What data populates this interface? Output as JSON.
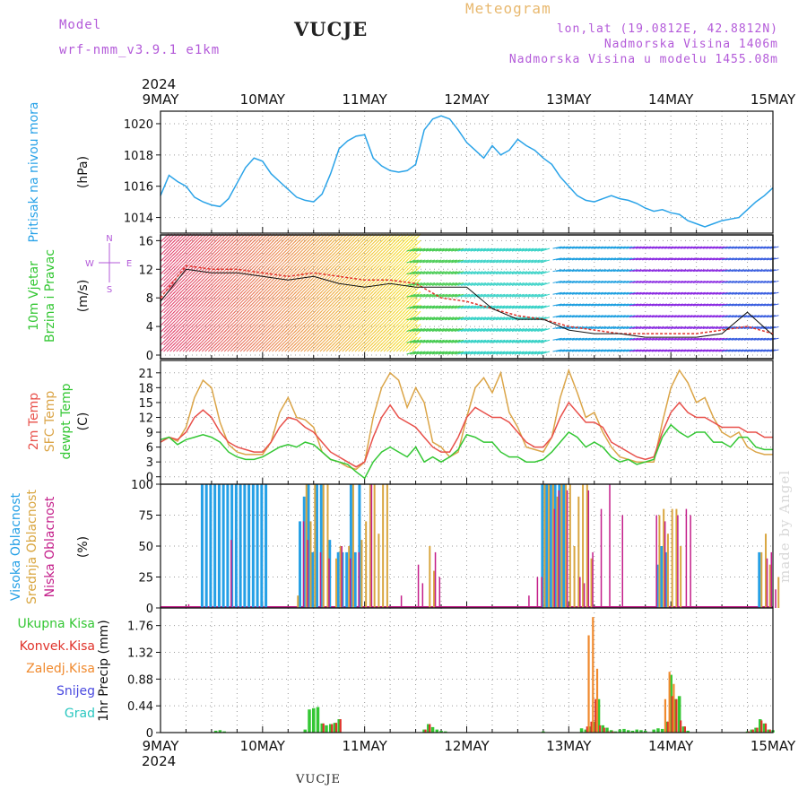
{
  "header": {
    "model_label": "Model",
    "model_name": "wrf-nmm_v3.9.1 e1km",
    "station": "VUCJE",
    "meteogram_label": "Meteogram",
    "coords": "lon,lat (19.0812E, 42.8812N)",
    "altitude": "Nadmorska Visina 1406m",
    "model_altitude": "Nadmorska Visina u modelu 1455.08m"
  },
  "footer": {
    "station": "VUCJE",
    "credit": "made by Angel"
  },
  "time_axis": {
    "year": "2024",
    "labels": [
      "9MAY",
      "10MAY",
      "11MAY",
      "12MAY",
      "13MAY",
      "14MAY",
      "15MAY"
    ]
  },
  "colors": {
    "pressure": "#2aa3e8",
    "wind_speed": "#111111",
    "wind_gust": "#e0322a",
    "temp2m": "#e8504a",
    "sfc_temp": "#dba548",
    "dewpt": "#34c734",
    "cloud_high": "#25a0e6",
    "cloud_mid": "#d9a640",
    "cloud_low": "#c41e8a",
    "precip_total": "#34c734",
    "precip_conv": "#e0322a",
    "precip_frozen": "#f08a2e",
    "snow": "#4a4ae0",
    "grad": "#2ac7c0"
  },
  "panels": {
    "pressure": {
      "label1": "Pritisak na nivou mora",
      "unit": "(hPa)"
    },
    "wind": {
      "label1": "10m Vjetar",
      "label2": "Brzina i Pravac",
      "unit": "(m/s)",
      "compass": [
        "N",
        "S",
        "E",
        "W"
      ]
    },
    "temp": {
      "label1": "2m Temp",
      "label2": "SFC Temp",
      "label3": "dewpt Temp",
      "unit": "(C)"
    },
    "cloud": {
      "label1": "Visoka Oblacnost",
      "label2": "Srednja Oblacnost",
      "label3": "Niska Oblacnost",
      "unit": "(%)"
    },
    "precip": {
      "label1": "Ukupna Kisa",
      "label2": "Konvek.Kisa",
      "label3": "Zaledj.Kisa",
      "label4": "Snijeg",
      "label5": "Grad",
      "unit": "1hr Precip (mm)"
    }
  },
  "chart_data": [
    {
      "type": "line",
      "panel": "pressure",
      "ylabel": "(hPa)",
      "ylim": [
        1013,
        1020.8
      ],
      "yticks": [
        1014,
        1016,
        1018,
        1020
      ],
      "grid": true,
      "x": [
        0,
        2,
        4,
        6,
        8,
        10,
        12,
        14,
        16,
        18,
        20,
        22,
        24,
        26,
        28,
        30,
        32,
        34,
        36,
        38,
        40,
        42,
        44,
        46,
        48,
        50,
        52,
        54,
        56,
        58,
        60,
        62,
        64,
        66,
        68,
        70,
        72,
        74,
        76,
        78,
        80,
        82,
        84,
        86,
        88,
        90,
        92,
        94,
        96,
        98,
        100,
        102,
        104,
        106,
        108,
        110,
        112,
        114,
        116,
        118,
        120,
        122,
        124,
        126,
        128,
        130,
        132,
        134,
        136,
        138,
        140,
        142,
        144
      ],
      "series": [
        {
          "values": [
            1015.4,
            1016.7,
            1016.3,
            1016.0,
            1015.3,
            1015.0,
            1014.8,
            1014.7,
            1015.2,
            1016.2,
            1017.2,
            1017.8,
            1017.6,
            1016.8,
            1016.3,
            1015.8,
            1015.3,
            1015.1,
            1015.0,
            1015.5,
            1016.8,
            1018.4,
            1018.9,
            1019.2,
            1019.3,
            1017.8,
            1017.3,
            1017.0,
            1016.9,
            1017.0,
            1017.4,
            1019.6,
            1020.3,
            1020.5,
            1020.3,
            1019.6,
            1018.8,
            1018.3,
            1017.8,
            1018.6,
            1018.0,
            1018.3,
            1019.0,
            1018.6,
            1018.3,
            1017.8,
            1017.4,
            1016.6,
            1016.0,
            1015.4,
            1015.1,
            1015.0,
            1015.2,
            1015.4,
            1015.2,
            1015.1,
            1014.9,
            1014.6,
            1014.4,
            1014.5,
            1014.3,
            1014.2,
            1013.8,
            1013.6,
            1013.4,
            1013.6,
            1013.8,
            1013.9,
            1014.0,
            1014.5,
            1015.0,
            1015.4,
            1015.9
          ]
        }
      ]
    },
    {
      "type": "line",
      "panel": "wind",
      "ylabel": "(m/s)",
      "ylim": [
        -0.5,
        16.8
      ],
      "yticks": [
        0,
        4,
        8,
        12,
        16
      ],
      "grid": true,
      "x": [
        0,
        6,
        12,
        18,
        24,
        30,
        36,
        42,
        48,
        54,
        60,
        66,
        72,
        78,
        84,
        90,
        96,
        102,
        108,
        114,
        120,
        126,
        132,
        138,
        144
      ],
      "series": [
        {
          "name": "speed",
          "values": [
            7.5,
            12.0,
            11.5,
            11.5,
            11.0,
            10.5,
            11.0,
            10.0,
            9.5,
            10.0,
            9.5,
            9.5,
            9.5,
            6.5,
            5.0,
            5.0,
            3.5,
            3.0,
            3.0,
            2.5,
            2.5,
            2.5,
            3.0,
            6.0,
            2.8
          ]
        },
        {
          "name": "gust",
          "values": [
            8.0,
            12.5,
            12.0,
            12.0,
            11.5,
            11.0,
            11.5,
            11.0,
            10.5,
            10.5,
            10.0,
            8.0,
            7.5,
            6.5,
            5.5,
            5.0,
            4.0,
            3.5,
            3.0,
            3.0,
            3.0,
            3.0,
            3.5,
            4.0,
            3.0
          ]
        }
      ]
    },
    {
      "type": "line",
      "panel": "temp",
      "ylabel": "(C)",
      "ylim": [
        -1.5,
        23.5
      ],
      "yticks": [
        0,
        3,
        6,
        9,
        12,
        15,
        18,
        21
      ],
      "grid": true,
      "x": [
        0,
        2,
        4,
        6,
        8,
        10,
        12,
        14,
        16,
        18,
        20,
        22,
        24,
        26,
        28,
        30,
        32,
        34,
        36,
        38,
        40,
        42,
        44,
        46,
        48,
        50,
        52,
        54,
        56,
        58,
        60,
        62,
        64,
        66,
        68,
        70,
        72,
        74,
        76,
        78,
        80,
        82,
        84,
        86,
        88,
        90,
        92,
        94,
        96,
        98,
        100,
        102,
        104,
        106,
        108,
        110,
        112,
        114,
        116,
        118,
        120,
        122,
        124,
        126,
        128,
        130,
        132,
        134,
        136,
        138,
        140,
        142,
        144
      ],
      "series": [
        {
          "name": "2m Temp",
          "values": [
            7,
            8,
            7.5,
            9,
            12,
            13.5,
            12,
            9,
            7,
            6,
            5.5,
            5,
            5,
            7,
            10,
            12,
            11.5,
            10,
            9,
            7,
            5,
            4,
            3,
            2,
            3,
            8,
            12,
            14.5,
            12,
            11,
            10,
            8,
            6,
            5,
            5,
            8,
            12,
            14,
            13,
            12,
            12,
            11,
            9,
            7,
            6,
            6,
            8,
            12,
            15,
            13,
            11,
            11,
            10,
            7,
            6,
            5,
            4,
            3.5,
            4,
            9,
            13,
            15,
            13,
            12,
            12,
            11,
            10,
            10,
            10,
            9,
            9,
            8,
            8
          ]
        },
        {
          "name": "SFC Temp",
          "values": [
            7,
            8,
            7.2,
            10,
            16,
            19.5,
            18,
            11,
            6.5,
            5,
            4.5,
            4.5,
            4.5,
            7,
            13,
            16,
            12,
            11.5,
            10,
            5,
            3.5,
            3,
            2,
            1.5,
            3,
            12,
            18,
            21,
            19.5,
            14,
            18,
            15,
            7,
            6,
            4,
            5,
            12,
            18,
            20,
            17,
            21,
            13,
            10,
            6,
            5.5,
            5,
            8,
            16,
            21.5,
            17,
            12,
            13,
            9,
            6,
            4,
            3.5,
            3,
            3,
            3,
            11,
            18,
            21.5,
            19,
            15,
            16,
            12,
            9,
            8,
            9,
            6,
            5,
            4.5,
            4.5
          ]
        },
        {
          "name": "dewpt Temp",
          "values": [
            7.5,
            8,
            6.5,
            7.5,
            8,
            8.5,
            8,
            7,
            5,
            4,
            3.5,
            3.5,
            4,
            5,
            6,
            6.5,
            6,
            7,
            6.5,
            5,
            3.5,
            3,
            2.5,
            1,
            -0.3,
            3,
            5,
            6,
            5,
            4,
            6,
            3,
            4,
            3,
            4,
            5.5,
            8.5,
            8,
            7,
            7,
            5,
            4,
            4,
            3,
            3,
            3.5,
            5,
            7,
            9,
            8,
            6,
            7,
            6,
            4,
            3,
            3.5,
            2.5,
            3,
            3.5,
            8,
            10.5,
            9,
            8,
            9,
            9,
            7,
            7,
            6,
            8,
            8,
            6,
            5.5,
            5.5
          ]
        }
      ]
    },
    {
      "type": "bar",
      "panel": "cloud",
      "ylabel": "(%)",
      "ylim": [
        0,
        100
      ],
      "yticks": [
        0,
        25,
        50,
        75,
        100
      ],
      "grid": true,
      "series": [
        {
          "name": "Visoka Oblacnost",
          "x": [
            10,
            11,
            12,
            13,
            14,
            15,
            16,
            17,
            18,
            19,
            20,
            21,
            22,
            23,
            24,
            25,
            33,
            34,
            35,
            36,
            37,
            38,
            40,
            42,
            43,
            44,
            45,
            46,
            47,
            90,
            91,
            92,
            93,
            94,
            95,
            117,
            118,
            119,
            141
          ],
          "values": [
            100,
            100,
            100,
            100,
            100,
            100,
            100,
            100,
            100,
            100,
            100,
            100,
            100,
            100,
            100,
            100,
            70,
            90,
            100,
            45,
            100,
            100,
            55,
            45,
            45,
            45,
            100,
            45,
            100,
            100,
            100,
            100,
            100,
            100,
            100,
            35,
            50,
            45,
            45
          ]
        },
        {
          "name": "Srednja Oblacnost",
          "x": [
            32,
            34,
            35,
            36,
            38,
            39,
            41,
            42,
            44,
            45,
            47,
            48,
            49,
            50,
            51,
            52,
            53,
            63,
            64,
            90,
            91,
            92,
            93,
            94,
            95,
            96,
            97,
            98,
            99,
            100,
            101,
            117,
            118,
            119,
            120,
            121,
            122,
            141,
            142,
            143,
            145
          ],
          "values": [
            10,
            100,
            70,
            100,
            100,
            100,
            40,
            50,
            50,
            100,
            55,
            70,
            100,
            100,
            60,
            100,
            100,
            50,
            30,
            100,
            100,
            100,
            90,
            100,
            100,
            100,
            50,
            90,
            100,
            100,
            40,
            75,
            80,
            60,
            80,
            80,
            50,
            45,
            60,
            35,
            25
          ]
        },
        {
          "name": "Niska Oblacnost",
          "x": [
            6,
            16,
            33,
            34,
            37,
            39,
            42,
            44,
            46,
            49,
            56,
            60,
            61,
            64,
            65,
            86,
            88,
            89,
            92,
            93,
            95,
            98,
            99,
            100,
            101,
            103,
            105,
            108,
            116,
            118,
            121,
            123,
            124,
            142,
            143,
            144
          ],
          "values": [
            3,
            55,
            70,
            55,
            45,
            40,
            50,
            40,
            45,
            100,
            10,
            35,
            20,
            45,
            25,
            10,
            25,
            25,
            80,
            95,
            95,
            25,
            20,
            95,
            45,
            80,
            100,
            75,
            75,
            70,
            75,
            80,
            75,
            40,
            45,
            15
          ]
        }
      ]
    },
    {
      "type": "bar",
      "panel": "precip",
      "ylabel": "1hr Precip (mm)",
      "ylim": [
        0,
        2.05
      ],
      "yticks": [
        0,
        0.44,
        0.88,
        1.32,
        1.76
      ],
      "grid": true,
      "series": [
        {
          "name": "Ukupna Kisa",
          "x": [
            13,
            14,
            15,
            34,
            35,
            36,
            37,
            38,
            39,
            40,
            41,
            42,
            62,
            63,
            64,
            65,
            66,
            67,
            90,
            99,
            100,
            101,
            102,
            103,
            104,
            105,
            106,
            107,
            108,
            109,
            110,
            111,
            112,
            113,
            114,
            116,
            117,
            118,
            119,
            120,
            121,
            122,
            123,
            124,
            138,
            139,
            140,
            141,
            142,
            143,
            144
          ],
          "values": [
            0.03,
            0.04,
            0.02,
            0.05,
            0.38,
            0.4,
            0.42,
            0.15,
            0.12,
            0.14,
            0.16,
            0.22,
            0.05,
            0.14,
            0.09,
            0.05,
            0.03,
            0.02,
            0.02,
            0.07,
            0.05,
            0.1,
            0.18,
            0.55,
            0.12,
            0.08,
            0.04,
            0.02,
            0.05,
            0.06,
            0.04,
            0.03,
            0.05,
            0.04,
            0.03,
            0.05,
            0.07,
            0.06,
            0.18,
            0.95,
            0.55,
            0.6,
            0.1,
            0.03,
            0.02,
            0.05,
            0.08,
            0.22,
            0.15,
            0.05,
            0.04
          ]
        },
        {
          "name": "Konvek.Kisa",
          "x": [
            38,
            40,
            41,
            42,
            62,
            63,
            100,
            101,
            102,
            103,
            104,
            105,
            106,
            119,
            120,
            121,
            122,
            123,
            138,
            139,
            140,
            141,
            142,
            143
          ],
          "values": [
            0.15,
            0.14,
            0.16,
            0.22,
            0.05,
            0.14,
            0.1,
            0.18,
            0.55,
            0.12,
            0.08,
            0.02,
            0.02,
            0.18,
            0.6,
            0.55,
            0.2,
            0.1,
            0.02,
            0.05,
            0.08,
            0.2,
            0.15,
            0.05
          ]
        },
        {
          "name": "Zaledj.Kisa",
          "x": [
            101,
            102,
            103,
            119,
            120,
            121
          ],
          "values": [
            1.6,
            1.9,
            1.05,
            0.55,
            1.0,
            0.8
          ]
        }
      ]
    }
  ]
}
